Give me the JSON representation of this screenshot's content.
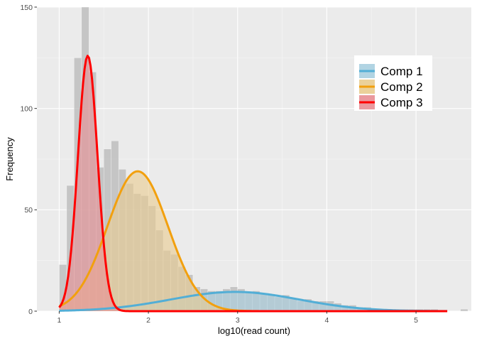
{
  "chart_data": {
    "type": "histogram",
    "xlabel": "log10(read count)",
    "ylabel": "Frequency",
    "xlim": [
      0.75,
      5.62
    ],
    "ylim": [
      0,
      150
    ],
    "xticks": [
      "1",
      "2",
      "3",
      "4",
      "5"
    ],
    "yticks": [
      "0",
      "50",
      "100",
      "150"
    ],
    "grid": true,
    "legend_position": "top-right",
    "histogram": {
      "bin_start": 1.0,
      "bin_width": 0.0833,
      "counts": [
        23,
        62,
        125,
        152,
        118,
        71,
        80,
        84,
        70,
        63,
        58,
        57,
        52,
        40,
        30,
        28,
        22,
        18,
        12,
        11,
        10,
        10,
        11,
        12,
        11,
        9,
        10,
        9,
        8,
        7,
        8,
        6,
        5,
        6,
        5,
        5,
        5,
        4,
        3,
        3,
        2,
        2,
        1,
        1,
        1,
        1,
        1,
        1,
        1,
        1,
        1,
        0,
        0,
        0,
        1
      ],
      "color": "#b8b8b8"
    },
    "series": [
      {
        "name": "Comp 1",
        "color": "#52aed6",
        "fill": "#a8cfe0",
        "mean": 2.97,
        "sd": 0.72,
        "peak": 9.5
      },
      {
        "name": "Comp 2",
        "color": "#f2a00e",
        "fill": "#e9cc8f",
        "mean": 1.88,
        "sd": 0.34,
        "peak": 69
      },
      {
        "name": "Comp 3",
        "color": "#ff0000",
        "fill": "#e88e93",
        "mean": 1.32,
        "sd": 0.11,
        "peak": 126
      }
    ]
  }
}
